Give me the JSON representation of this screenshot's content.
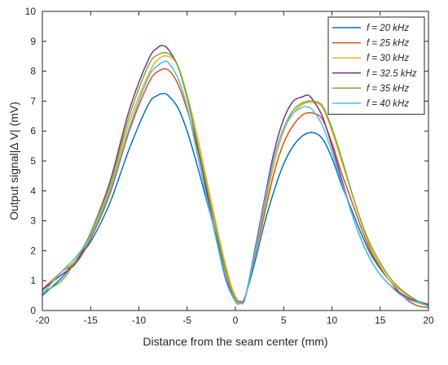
{
  "chart_data": {
    "type": "line",
    "title": "",
    "xlabel": "Distance from the seam center (mm)",
    "ylabel": "Output signal|Δ V| (mV)",
    "xlim": [
      -20,
      20
    ],
    "ylim": [
      0,
      10
    ],
    "xticks": [
      "-20",
      "-15",
      "-10",
      "-5",
      "0",
      "5",
      "10",
      "15",
      "20"
    ],
    "yticks": [
      "0",
      "1",
      "2",
      "3",
      "4",
      "5",
      "6",
      "7",
      "8",
      "9",
      "10"
    ],
    "grid": false,
    "legend_position": "top-right",
    "series": [
      {
        "name": "f = 20 kHz",
        "color": "#0072BD",
        "x": [
          -20,
          -18,
          -16.5,
          -15,
          -13,
          -11,
          -9,
          -8,
          -7.5,
          -7,
          -6,
          -5,
          -4,
          -3,
          -2,
          -1,
          0,
          0.5,
          1,
          2,
          3,
          4,
          5,
          6,
          7,
          8,
          9,
          10,
          11,
          12,
          13,
          14,
          15,
          16,
          17,
          18,
          19,
          20
        ],
        "y": [
          0.5,
          1.1,
          1.7,
          2.3,
          3.6,
          5.4,
          6.9,
          7.2,
          7.25,
          7.2,
          6.8,
          6.0,
          4.9,
          3.7,
          2.5,
          1.3,
          0.45,
          0.3,
          0.45,
          1.6,
          2.9,
          4.0,
          4.9,
          5.5,
          5.85,
          5.95,
          5.75,
          5.1,
          4.2,
          3.4,
          2.6,
          1.9,
          1.4,
          1.0,
          0.7,
          0.45,
          0.3,
          0.15
        ]
      },
      {
        "name": "f = 25 kHz",
        "color": "#D95319",
        "x": [
          -20,
          -18,
          -16.5,
          -15,
          -13,
          -11,
          -9,
          -8,
          -7,
          -6,
          -5,
          -4,
          -3,
          -2,
          -1,
          0,
          0.5,
          1,
          2,
          3,
          4,
          5,
          6,
          7,
          8,
          9,
          10,
          11,
          12,
          13,
          14,
          15,
          16,
          17,
          18,
          19,
          20
        ],
        "y": [
          0.7,
          1.3,
          1.6,
          2.4,
          3.9,
          6.0,
          7.6,
          8.0,
          8.05,
          7.6,
          6.7,
          5.5,
          4.1,
          2.7,
          1.4,
          0.45,
          0.3,
          0.45,
          1.8,
          3.2,
          4.6,
          5.6,
          6.2,
          6.55,
          6.6,
          6.4,
          5.6,
          4.6,
          3.7,
          2.8,
          2.0,
          1.45,
          1.0,
          0.6,
          0.3,
          0.15,
          0.1
        ]
      },
      {
        "name": "f = 30 kHz",
        "color": "#EDB120",
        "x": [
          -20,
          -18,
          -16.5,
          -15,
          -13,
          -11,
          -9,
          -8,
          -7,
          -6,
          -5,
          -4,
          -3,
          -2,
          -1,
          0,
          0.5,
          1,
          2,
          3,
          4,
          5,
          6,
          7,
          8,
          9,
          10,
          11,
          12,
          13,
          14,
          15,
          16,
          17,
          18,
          19,
          20
        ],
        "y": [
          0.65,
          1.3,
          1.7,
          2.5,
          4.1,
          6.3,
          7.9,
          8.4,
          8.5,
          8.2,
          7.2,
          5.9,
          4.4,
          2.9,
          1.5,
          0.4,
          0.25,
          0.4,
          1.9,
          3.4,
          4.9,
          6.0,
          6.6,
          6.9,
          6.95,
          6.8,
          6.0,
          5.0,
          4.0,
          3.0,
          2.1,
          1.5,
          1.0,
          0.7,
          0.45,
          0.3,
          0.2
        ]
      },
      {
        "name": "f = 32.5 kHz",
        "color": "#7E2F8E",
        "x": [
          -20,
          -18,
          -16.5,
          -15,
          -13,
          -11,
          -9,
          -8,
          -7.5,
          -7,
          -6,
          -5,
          -4,
          -3,
          -2,
          -1,
          0,
          0.5,
          1,
          2,
          3,
          4,
          5,
          6,
          7,
          7.5,
          8,
          9,
          10,
          11,
          12,
          13,
          14,
          15,
          16,
          17,
          18,
          19,
          20
        ],
        "y": [
          0.7,
          1.2,
          1.6,
          2.6,
          4.3,
          6.7,
          8.4,
          8.8,
          8.85,
          8.75,
          8.2,
          7.1,
          5.6,
          4.0,
          2.4,
          1.1,
          0.3,
          0.25,
          0.4,
          2.0,
          3.7,
          5.3,
          6.4,
          7.0,
          7.15,
          7.2,
          7.05,
          6.5,
          5.5,
          4.4,
          3.3,
          2.4,
          1.7,
          1.2,
          0.85,
          0.6,
          0.4,
          0.3,
          0.2
        ]
      },
      {
        "name": "f = 35 kHz",
        "color": "#77AC30",
        "x": [
          -20,
          -18,
          -16.5,
          -15,
          -13,
          -11,
          -9,
          -8,
          -7,
          -6,
          -5,
          -4,
          -3,
          -2,
          -1,
          0,
          0.5,
          1,
          2,
          3,
          4,
          5,
          6,
          7,
          8,
          9,
          10,
          11,
          12,
          13,
          14,
          15,
          16,
          17,
          18,
          19,
          20
        ],
        "y": [
          0.6,
          1.0,
          1.7,
          2.6,
          4.2,
          6.5,
          8.2,
          8.55,
          8.6,
          8.2,
          7.1,
          5.7,
          4.2,
          2.7,
          1.3,
          0.35,
          0.25,
          0.4,
          1.9,
          3.5,
          5.1,
          6.1,
          6.7,
          6.95,
          7.0,
          6.85,
          6.1,
          5.1,
          4.0,
          3.0,
          2.2,
          1.6,
          1.1,
          0.75,
          0.5,
          0.3,
          0.15
        ]
      },
      {
        "name": "f = 40 kHz",
        "color": "#4DBEEE",
        "x": [
          -20,
          -18,
          -16.5,
          -15,
          -13,
          -11,
          -9,
          -8,
          -7.5,
          -7,
          -6,
          -5,
          -4,
          -3,
          -2,
          -1,
          0,
          0.5,
          1,
          2,
          3,
          4,
          5,
          6,
          7,
          7.5,
          8,
          9,
          10,
          11,
          12,
          13,
          14,
          15,
          16,
          17,
          18,
          19,
          20
        ],
        "y": [
          0.55,
          1.3,
          1.8,
          2.5,
          4.0,
          6.1,
          7.8,
          8.2,
          8.3,
          8.3,
          7.8,
          6.8,
          5.3,
          3.8,
          2.4,
          1.0,
          0.3,
          0.25,
          0.4,
          1.9,
          3.6,
          5.1,
          6.1,
          6.6,
          6.8,
          6.8,
          6.7,
          6.2,
          5.3,
          4.3,
          3.3,
          2.4,
          1.7,
          1.2,
          0.85,
          0.55,
          0.35,
          0.25,
          0.15
        ]
      }
    ]
  }
}
